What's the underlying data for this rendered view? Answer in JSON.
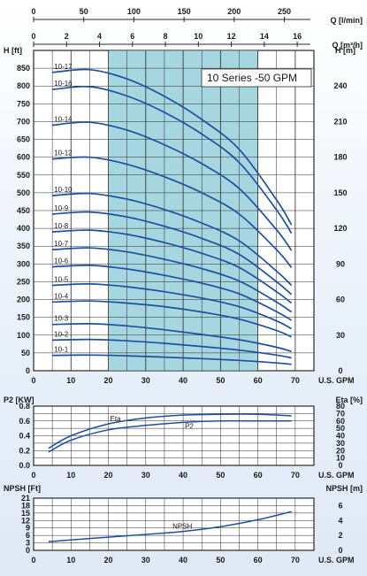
{
  "colors": {
    "curve": "#1f4fa0",
    "band": "#a6d6df",
    "grid": "#2a2a2a"
  },
  "chart_data": [
    {
      "type": "line",
      "title": "10 Series -50 GPM",
      "xlabel": "U.S. GPM",
      "ylabel": "H [ft]",
      "ylabel_right": "H [m]",
      "xlim": [
        0,
        75
      ],
      "ylim": [
        0,
        900
      ],
      "ylim_right": [
        0,
        270
      ],
      "x_ticks": [
        0,
        10,
        20,
        30,
        40,
        50,
        60,
        70
      ],
      "y_ticks": [
        0,
        50,
        100,
        150,
        200,
        250,
        300,
        350,
        400,
        450,
        500,
        550,
        600,
        650,
        700,
        750,
        800,
        850
      ],
      "y_ticks_right": [
        0,
        30,
        60,
        90,
        120,
        150,
        180,
        210,
        240
      ],
      "top_axis_lmin": {
        "label": "Q [l/min]",
        "ticks": [
          0,
          50,
          100,
          150,
          200,
          250
        ]
      },
      "top_axis_m3h": {
        "label": "Q [m³/h]",
        "ticks": [
          0,
          2,
          4,
          6,
          8,
          10,
          12,
          14,
          16
        ]
      },
      "recommended_range": [
        20,
        60
      ],
      "series": [
        {
          "name": "10-1",
          "x": [
            5,
            15,
            25,
            35,
            45,
            55,
            65,
            69
          ],
          "y": [
            43,
            44,
            42,
            38,
            34,
            29,
            22,
            18
          ]
        },
        {
          "name": "10-2",
          "x": [
            5,
            15,
            25,
            35,
            45,
            55,
            65,
            69
          ],
          "y": [
            86,
            88,
            84,
            77,
            68,
            58,
            44,
            36
          ]
        },
        {
          "name": "10-3",
          "x": [
            5,
            15,
            25,
            35,
            45,
            55,
            65,
            69
          ],
          "y": [
            130,
            132,
            126,
            115,
            102,
            87,
            66,
            54
          ]
        },
        {
          "name": "10-4",
          "x": [
            5,
            15,
            25,
            35,
            45,
            55,
            65,
            69
          ],
          "y": [
            193,
            196,
            190,
            180,
            165,
            145,
            113,
            95
          ]
        },
        {
          "name": "10-5",
          "x": [
            5,
            15,
            25,
            35,
            45,
            55,
            65,
            69
          ],
          "y": [
            240,
            244,
            236,
            222,
            204,
            180,
            140,
            118
          ]
        },
        {
          "name": "10-6",
          "x": [
            5,
            15,
            25,
            35,
            45,
            55,
            65,
            69
          ],
          "y": [
            292,
            296,
            286,
            268,
            246,
            216,
            166,
            142
          ]
        },
        {
          "name": "10-7",
          "x": [
            5,
            15,
            25,
            35,
            45,
            55,
            65,
            69
          ],
          "y": [
            340,
            345,
            334,
            313,
            287,
            252,
            193,
            165
          ]
        },
        {
          "name": "10-8",
          "x": [
            5,
            15,
            25,
            35,
            45,
            55,
            65,
            69
          ],
          "y": [
            390,
            395,
            383,
            360,
            330,
            290,
            222,
            190
          ]
        },
        {
          "name": "10-9",
          "x": [
            5,
            15,
            25,
            35,
            45,
            55,
            65,
            69
          ],
          "y": [
            440,
            446,
            432,
            406,
            372,
            327,
            250,
            214
          ]
        },
        {
          "name": "10-10",
          "x": [
            5,
            15,
            25,
            35,
            45,
            55,
            65,
            69
          ],
          "y": [
            492,
            498,
            482,
            453,
            415,
            365,
            280,
            240
          ]
        },
        {
          "name": "10-12",
          "x": [
            5,
            15,
            25,
            35,
            45,
            55,
            65,
            69
          ],
          "y": [
            595,
            600,
            580,
            545,
            500,
            440,
            340,
            290
          ]
        },
        {
          "name": "10-14",
          "x": [
            5,
            15,
            25,
            35,
            45,
            55,
            65,
            69
          ],
          "y": [
            690,
            698,
            676,
            635,
            582,
            512,
            396,
            338
          ]
        },
        {
          "name": "10-16",
          "x": [
            5,
            15,
            25,
            35,
            45,
            55,
            65,
            69
          ],
          "y": [
            790,
            798,
            772,
            726,
            665,
            585,
            452,
            386
          ]
        },
        {
          "name": "10-17",
          "x": [
            5,
            15,
            25,
            35,
            45,
            55,
            65,
            69
          ],
          "y": [
            838,
            846,
            820,
            771,
            706,
            622,
            480,
            410
          ]
        }
      ]
    },
    {
      "type": "line",
      "xlabel": "U.S. GPM",
      "ylabel": "P2 [KW]",
      "ylabel_right": "Eta [%]",
      "xlim": [
        0,
        75
      ],
      "ylim": [
        0,
        0.8
      ],
      "ylim_right": [
        0,
        80
      ],
      "x_ticks": [
        0,
        10,
        20,
        30,
        40,
        50,
        60,
        70
      ],
      "y_ticks": [
        0,
        0.2,
        0.4,
        0.6,
        0.8
      ],
      "y_ticks_right": [
        0,
        10,
        20,
        30,
        40,
        50,
        60,
        70,
        80
      ],
      "series": [
        {
          "name": "Eta",
          "axis": "right",
          "x": [
            4,
            10,
            20,
            30,
            40,
            50,
            60,
            69
          ],
          "y": [
            23,
            40,
            56,
            64,
            68,
            69,
            69,
            67
          ]
        },
        {
          "name": "P2",
          "axis": "left",
          "x": [
            4,
            10,
            20,
            30,
            40,
            50,
            60,
            69
          ],
          "y": [
            0.18,
            0.34,
            0.48,
            0.54,
            0.58,
            0.6,
            0.6,
            0.6
          ]
        }
      ]
    },
    {
      "type": "line",
      "xlabel": "U.S. GPM",
      "ylabel": "NPSH [Ft]",
      "ylabel_right": "NPSH [m]",
      "xlim": [
        0,
        75
      ],
      "ylim": [
        0,
        21
      ],
      "ylim_right": [
        0,
        7
      ],
      "x_ticks": [
        0,
        10,
        20,
        30,
        40,
        50,
        60,
        70
      ],
      "y_ticks": [
        0,
        3,
        6,
        9,
        12,
        15,
        18,
        21
      ],
      "y_ticks_right": [
        0,
        2,
        4,
        6
      ],
      "series": [
        {
          "name": "NPSH",
          "x": [
            4,
            10,
            20,
            30,
            40,
            50,
            60,
            69
          ],
          "y": [
            3.5,
            4.2,
            5.3,
            6.4,
            7.6,
            9.5,
            12.3,
            15.6
          ]
        }
      ]
    }
  ]
}
